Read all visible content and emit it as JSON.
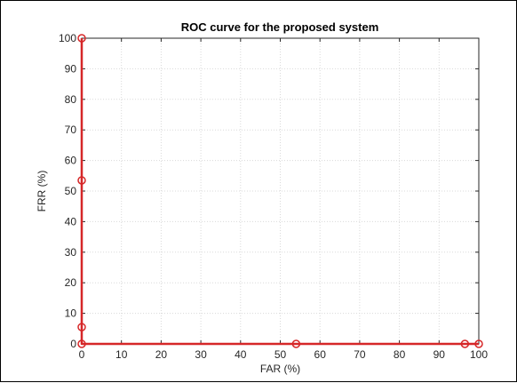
{
  "chart_data": {
    "type": "line",
    "title": "ROC curve for the proposed system",
    "xlabel": "FAR (%)",
    "ylabel": "FRR (%)",
    "xlim": [
      0,
      100
    ],
    "ylim": [
      0,
      100
    ],
    "xticks": [
      0,
      10,
      20,
      30,
      40,
      50,
      60,
      70,
      80,
      90,
      100
    ],
    "yticks": [
      0,
      10,
      20,
      30,
      40,
      50,
      60,
      70,
      80,
      90,
      100
    ],
    "grid": true,
    "series": [
      {
        "x": [
          0,
          0,
          0,
          0,
          54,
          96.5,
          100
        ],
        "y": [
          100,
          53.5,
          5.5,
          0,
          0,
          0,
          0
        ],
        "color": "#d62728",
        "marker": "circle-open"
      }
    ]
  }
}
